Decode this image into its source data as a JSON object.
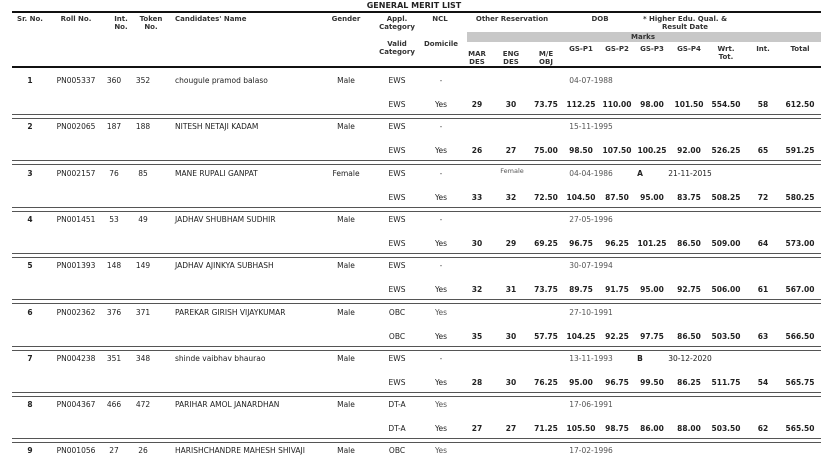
{
  "title": "GENERAL MERIT LIST",
  "headers": {
    "sr": "Sr. No.",
    "roll": "Roll No.",
    "int_no": "Int. No.",
    "token": "Token No.",
    "name": "Candidates' Name",
    "gender": "Gender",
    "appl_cat": "Appl. Category",
    "valid_cat": "Valid Category",
    "ncl": "NCL",
    "domicile": "Domicile",
    "other_res": "Other Reservation",
    "dob": "DOB",
    "hq": "* Higher Edu. Qual. & Result Date",
    "marks": "Marks",
    "mar": "MAR DES",
    "eng": "ENG DES",
    "me": "M/E OBJ",
    "p1": "GS-P1",
    "p2": "GS-P2",
    "p3": "GS-P3",
    "p4": "GS-P4",
    "wrt": "Wrt. Tot.",
    "intv": "Int.",
    "total": "Total"
  },
  "records": [
    {
      "sr": "1",
      "roll": "PN005337",
      "int_no": "360",
      "token": "352",
      "name": "chougule pramod balaso",
      "gender": "Male",
      "appl_cat": "EWS",
      "ncl": "-",
      "other_res": "",
      "dob": "04-07-1988",
      "hq": "",
      "hq_date": "",
      "valid_cat": "EWS",
      "domicile": "Yes",
      "mar": "29",
      "eng": "30",
      "me": "73.75",
      "p1": "112.25",
      "p2": "110.00",
      "p3": "98.00",
      "p4": "101.50",
      "wrt": "554.50",
      "intv": "58",
      "total": "612.50"
    },
    {
      "sr": "2",
      "roll": "PN002065",
      "int_no": "187",
      "token": "188",
      "name": "NITESH NETAJI KADAM",
      "gender": "Male",
      "appl_cat": "EWS",
      "ncl": "-",
      "other_res": "",
      "dob": "15-11-1995",
      "hq": "",
      "hq_date": "",
      "valid_cat": "EWS",
      "domicile": "Yes",
      "mar": "26",
      "eng": "27",
      "me": "75.00",
      "p1": "98.50",
      "p2": "107.50",
      "p3": "100.25",
      "p4": "92.00",
      "wrt": "526.25",
      "intv": "65",
      "total": "591.25"
    },
    {
      "sr": "3",
      "roll": "PN002157",
      "int_no": "76",
      "token": "85",
      "name": "MANE RUPALI GANPAT",
      "gender": "Female",
      "appl_cat": "EWS",
      "ncl": "-",
      "other_res": "Female",
      "dob": "04-04-1986",
      "hq": "A",
      "hq_date": "21-11-2015",
      "valid_cat": "EWS",
      "domicile": "Yes",
      "mar": "33",
      "eng": "32",
      "me": "72.50",
      "p1": "104.50",
      "p2": "87.50",
      "p3": "95.00",
      "p4": "83.75",
      "wrt": "508.25",
      "intv": "72",
      "total": "580.25"
    },
    {
      "sr": "4",
      "roll": "PN001451",
      "int_no": "53",
      "token": "49",
      "name": "JADHAV SHUBHAM SUDHIR",
      "gender": "Male",
      "appl_cat": "EWS",
      "ncl": "-",
      "other_res": "",
      "dob": "27-05-1996",
      "hq": "",
      "hq_date": "",
      "valid_cat": "EWS",
      "domicile": "Yes",
      "mar": "30",
      "eng": "29",
      "me": "69.25",
      "p1": "96.75",
      "p2": "96.25",
      "p3": "101.25",
      "p4": "86.50",
      "wrt": "509.00",
      "intv": "64",
      "total": "573.00"
    },
    {
      "sr": "5",
      "roll": "PN001393",
      "int_no": "148",
      "token": "149",
      "name": "JADHAV AJINKYA SUBHASH",
      "gender": "Male",
      "appl_cat": "EWS",
      "ncl": "-",
      "other_res": "",
      "dob": "30-07-1994",
      "hq": "",
      "hq_date": "",
      "valid_cat": "EWS",
      "domicile": "Yes",
      "mar": "32",
      "eng": "31",
      "me": "73.75",
      "p1": "89.75",
      "p2": "91.75",
      "p3": "95.00",
      "p4": "92.75",
      "wrt": "506.00",
      "intv": "61",
      "total": "567.00"
    },
    {
      "sr": "6",
      "roll": "PN002362",
      "int_no": "376",
      "token": "371",
      "name": "PAREKAR GIRISH VIJAYKUMAR",
      "gender": "Male",
      "appl_cat": "OBC",
      "ncl": "Yes",
      "other_res": "",
      "dob": "27-10-1991",
      "hq": "",
      "hq_date": "",
      "valid_cat": "OBC",
      "domicile": "Yes",
      "mar": "35",
      "eng": "30",
      "me": "57.75",
      "p1": "104.25",
      "p2": "92.25",
      "p3": "97.75",
      "p4": "86.50",
      "wrt": "503.50",
      "intv": "63",
      "total": "566.50"
    },
    {
      "sr": "7",
      "roll": "PN004238",
      "int_no": "351",
      "token": "348",
      "name": "shinde vaibhav bhaurao",
      "gender": "Male",
      "appl_cat": "EWS",
      "ncl": "-",
      "other_res": "",
      "dob": "13-11-1993",
      "hq": "B",
      "hq_date": "30-12-2020",
      "valid_cat": "EWS",
      "domicile": "Yes",
      "mar": "28",
      "eng": "30",
      "me": "76.25",
      "p1": "95.00",
      "p2": "96.75",
      "p3": "99.50",
      "p4": "86.25",
      "wrt": "511.75",
      "intv": "54",
      "total": "565.75"
    },
    {
      "sr": "8",
      "roll": "PN004367",
      "int_no": "466",
      "token": "472",
      "name": "PARIHAR AMOL JANARDHAN",
      "gender": "Male",
      "appl_cat": "DT-A",
      "ncl": "Yes",
      "other_res": "",
      "dob": "17-06-1991",
      "hq": "",
      "hq_date": "",
      "valid_cat": "DT-A",
      "domicile": "Yes",
      "mar": "27",
      "eng": "27",
      "me": "71.25",
      "p1": "105.50",
      "p2": "98.75",
      "p3": "86.00",
      "p4": "88.00",
      "wrt": "503.50",
      "intv": "62",
      "total": "565.50"
    },
    {
      "sr": "9",
      "roll": "PN001056",
      "int_no": "27",
      "token": "26",
      "name": "HARISHCHANDRE MAHESH SHIVAJI",
      "gender": "Male",
      "appl_cat": "OBC",
      "ncl": "Yes",
      "other_res": "",
      "dob": "17-02-1996",
      "hq": "",
      "hq_date": ""
    }
  ]
}
